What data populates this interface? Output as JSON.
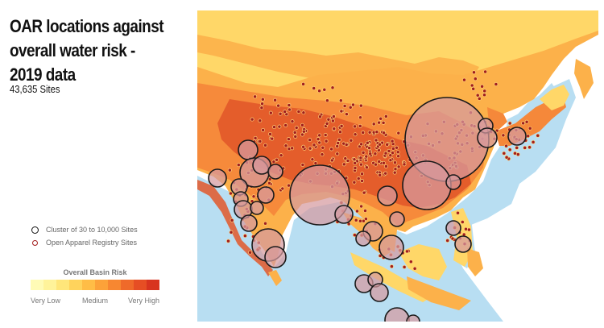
{
  "header": {
    "title": "OAR locations against overall water risk - 2019 data",
    "subtitle": "43,635 Sites"
  },
  "legend": {
    "cluster_label": "Cluster of 30 to 10,000 Sites",
    "sites_label": "Open Apparel Registry Sites"
  },
  "risk_legend": {
    "title": "Overall Basin Risk",
    "low": "Very Low",
    "medium": "Medium",
    "high": "Very High",
    "colors": [
      "#fffbb6",
      "#fff39a",
      "#ffe67a",
      "#ffd35c",
      "#ffbd46",
      "#fca239",
      "#f78731",
      "#ef6a2a",
      "#e64e24",
      "#d8341f"
    ]
  },
  "map": {
    "colors": {
      "land": "#fcb14a",
      "land_light": "#ffd768",
      "land_dark": "#f5883a",
      "land_darker": "#e2582a",
      "shelf": "#b8def2",
      "sea": "#ffffff",
      "cluster_fill": "#d69aa0",
      "cluster_stroke": "#1a1a1a",
      "site": "#a11e1e"
    }
  }
}
